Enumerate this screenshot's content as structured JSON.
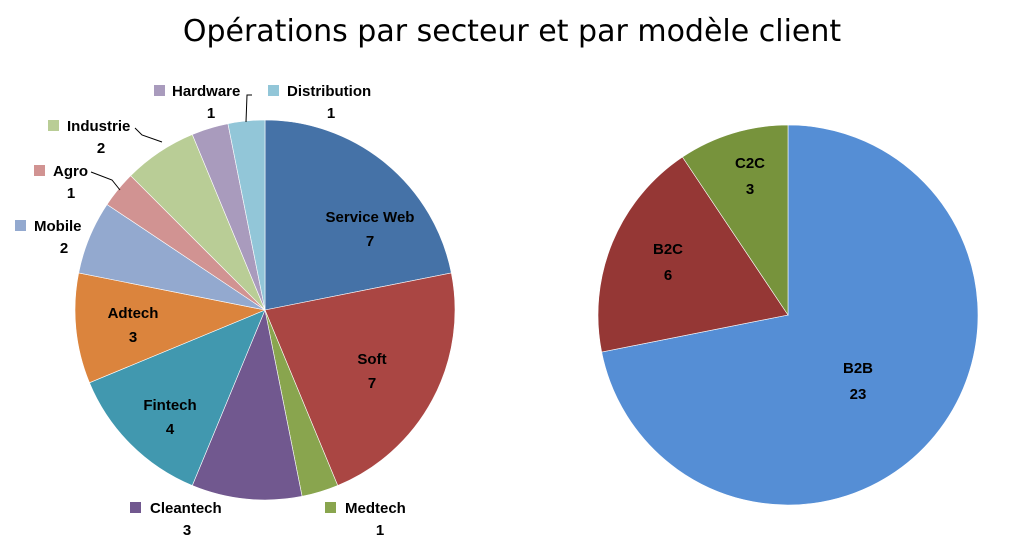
{
  "title": "Opérations par secteur et par modèle client",
  "chart_data": [
    {
      "type": "pie",
      "title": "",
      "slices": [
        {
          "label": "Service Web",
          "value": 7,
          "color": "#4572A7",
          "label_style": "inside"
        },
        {
          "label": "Soft",
          "value": 7,
          "color": "#AA4643",
          "label_style": "inside"
        },
        {
          "label": "Medtech",
          "value": 1,
          "color": "#89A54E",
          "label_style": "outside"
        },
        {
          "label": "Cleantech",
          "value": 3,
          "color": "#71588F",
          "label_style": "outside"
        },
        {
          "label": "Fintech",
          "value": 4,
          "color": "#4198AF",
          "label_style": "inside"
        },
        {
          "label": "Adtech",
          "value": 3,
          "color": "#DB843D",
          "label_style": "inside"
        },
        {
          "label": "Mobile",
          "value": 2,
          "color": "#93A9CF",
          "label_style": "outside"
        },
        {
          "label": "Agro",
          "value": 1,
          "color": "#D19392",
          "label_style": "outside"
        },
        {
          "label": "Industrie",
          "value": 2,
          "color": "#B9CD96",
          "label_style": "outside"
        },
        {
          "label": "Hardware",
          "value": 1,
          "color": "#A99BBD",
          "label_style": "outside"
        },
        {
          "label": "Distribution",
          "value": 1,
          "color": "#92C6D8",
          "label_style": "outside"
        }
      ]
    },
    {
      "type": "pie",
      "title": "",
      "slices": [
        {
          "label": "B2B",
          "value": 23,
          "color": "#558ED5",
          "label_style": "inside"
        },
        {
          "label": "B2C",
          "value": 6,
          "color": "#953735",
          "label_style": "inside"
        },
        {
          "label": "C2C",
          "value": 3,
          "color": "#77933C",
          "label_style": "inside"
        }
      ]
    }
  ]
}
